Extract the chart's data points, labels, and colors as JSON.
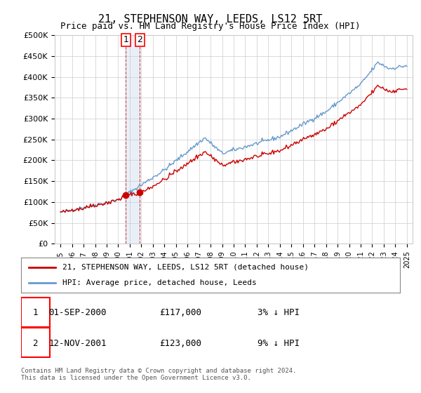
{
  "title": "21, STEPHENSON WAY, LEEDS, LS12 5RT",
  "subtitle": "Price paid vs. HM Land Registry's House Price Index (HPI)",
  "ylabel": "",
  "ylim": [
    0,
    500000
  ],
  "yticks": [
    0,
    50000,
    100000,
    150000,
    200000,
    250000,
    300000,
    350000,
    400000,
    450000,
    500000
  ],
  "ytick_labels": [
    "£0",
    "£50K",
    "£100K",
    "£150K",
    "£200K",
    "£250K",
    "£300K",
    "£350K",
    "£400K",
    "£450K",
    "£500K"
  ],
  "bg_color": "#ffffff",
  "grid_color": "#cccccc",
  "hpi_color": "#6699cc",
  "price_color": "#cc0000",
  "sale1_date": 2000.667,
  "sale1_price": 117000,
  "sale1_label": "1",
  "sale2_date": 2001.87,
  "sale2_price": 123000,
  "sale2_label": "2",
  "legend_line1": "21, STEPHENSON WAY, LEEDS, LS12 5RT (detached house)",
  "legend_line2": "HPI: Average price, detached house, Leeds",
  "table_row1_num": "1",
  "table_row1_date": "01-SEP-2000",
  "table_row1_price": "£117,000",
  "table_row1_hpi": "3% ↓ HPI",
  "table_row2_num": "2",
  "table_row2_date": "12-NOV-2001",
  "table_row2_price": "£123,000",
  "table_row2_hpi": "9% ↓ HPI",
  "footer": "Contains HM Land Registry data © Crown copyright and database right 2024.\nThis data is licensed under the Open Government Licence v3.0."
}
